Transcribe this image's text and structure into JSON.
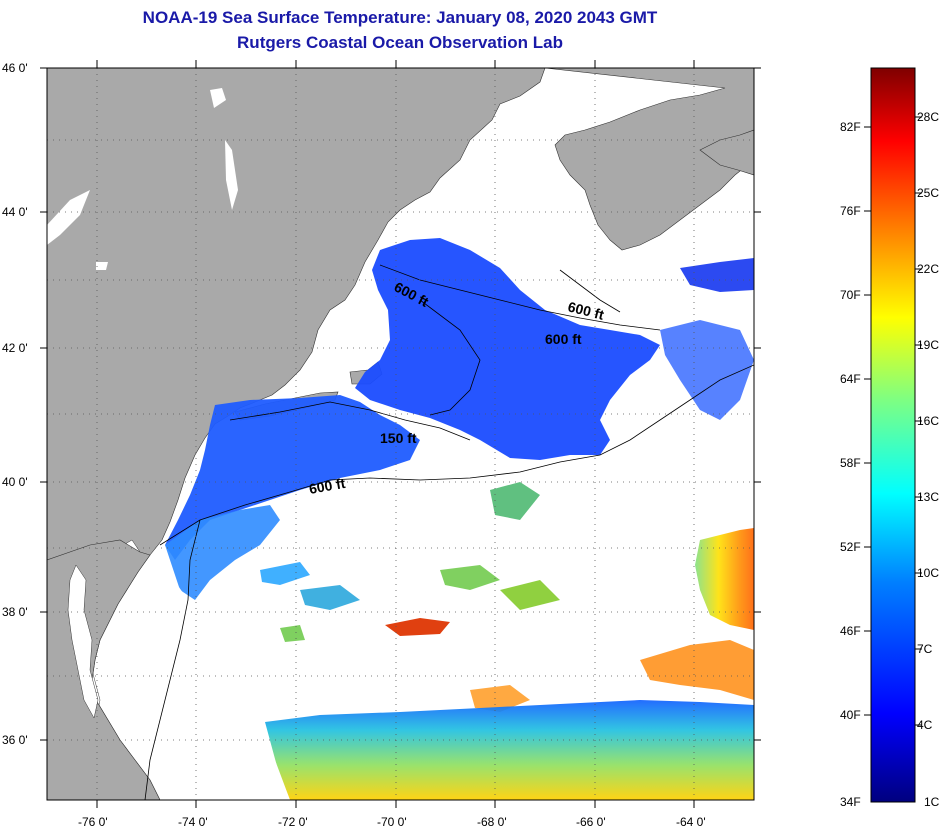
{
  "title": "NOAA-19 Sea Surface Temperature:  January 08, 2020 2043 GMT",
  "subtitle": "Rutgers Coastal Ocean Observation Lab",
  "axes": {
    "lon_labels": [
      "-76 0'",
      "-74 0'",
      "-72 0'",
      "-70 0'",
      "-68 0'",
      "-66 0'",
      "-64 0'"
    ],
    "lat_labels": [
      "46 0'",
      "44 0'",
      "42 0'",
      "40 0'",
      "38 0'",
      "36 0'"
    ]
  },
  "contours": [
    "600 ft",
    "600 ft",
    "600 ft",
    "150 ft",
    "600 ft"
  ],
  "colorbar": {
    "fahrenheit": [
      "82F",
      "76F",
      "70F",
      "64F",
      "58F",
      "52F",
      "46F",
      "40F",
      "34F"
    ],
    "celsius": [
      "28C",
      "25C",
      "22C",
      "19C",
      "16C",
      "13C",
      "10C",
      "7C",
      "4C",
      "1C"
    ],
    "colors": [
      "#00007f",
      "#0000ff",
      "#0080ff",
      "#00ffff",
      "#80ff80",
      "#ffff00",
      "#ff8000",
      "#ff0000",
      "#7f0000"
    ]
  },
  "colors": {
    "land": "#a9a9a9",
    "cloud": "#ffffff",
    "title": "#1a1aa8"
  }
}
